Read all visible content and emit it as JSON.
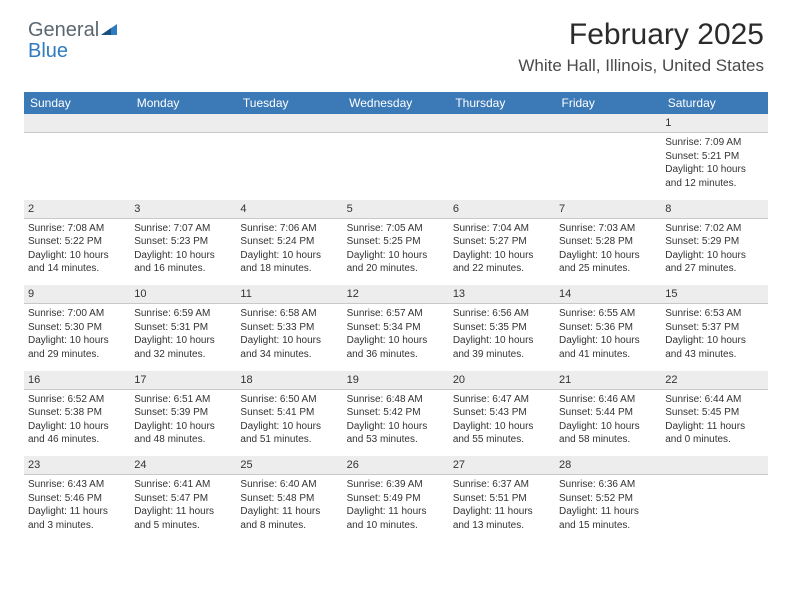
{
  "logo": {
    "word1": "General",
    "word2": "Blue"
  },
  "colors": {
    "header_bg": "#3b79b7",
    "header_text": "#ffffff",
    "daynum_bg": "#ededed",
    "body_text": "#333333",
    "logo_grey": "#5b6770",
    "logo_blue": "#2f7bbf",
    "page_bg": "#ffffff"
  },
  "title": "February 2025",
  "location": "White Hall, Illinois, United States",
  "day_headers": [
    "Sunday",
    "Monday",
    "Tuesday",
    "Wednesday",
    "Thursday",
    "Friday",
    "Saturday"
  ],
  "weeks": [
    [
      null,
      null,
      null,
      null,
      null,
      null,
      {
        "n": "1",
        "sunrise": "Sunrise: 7:09 AM",
        "sunset": "Sunset: 5:21 PM",
        "daylight": "Daylight: 10 hours and 12 minutes."
      }
    ],
    [
      {
        "n": "2",
        "sunrise": "Sunrise: 7:08 AM",
        "sunset": "Sunset: 5:22 PM",
        "daylight": "Daylight: 10 hours and 14 minutes."
      },
      {
        "n": "3",
        "sunrise": "Sunrise: 7:07 AM",
        "sunset": "Sunset: 5:23 PM",
        "daylight": "Daylight: 10 hours and 16 minutes."
      },
      {
        "n": "4",
        "sunrise": "Sunrise: 7:06 AM",
        "sunset": "Sunset: 5:24 PM",
        "daylight": "Daylight: 10 hours and 18 minutes."
      },
      {
        "n": "5",
        "sunrise": "Sunrise: 7:05 AM",
        "sunset": "Sunset: 5:25 PM",
        "daylight": "Daylight: 10 hours and 20 minutes."
      },
      {
        "n": "6",
        "sunrise": "Sunrise: 7:04 AM",
        "sunset": "Sunset: 5:27 PM",
        "daylight": "Daylight: 10 hours and 22 minutes."
      },
      {
        "n": "7",
        "sunrise": "Sunrise: 7:03 AM",
        "sunset": "Sunset: 5:28 PM",
        "daylight": "Daylight: 10 hours and 25 minutes."
      },
      {
        "n": "8",
        "sunrise": "Sunrise: 7:02 AM",
        "sunset": "Sunset: 5:29 PM",
        "daylight": "Daylight: 10 hours and 27 minutes."
      }
    ],
    [
      {
        "n": "9",
        "sunrise": "Sunrise: 7:00 AM",
        "sunset": "Sunset: 5:30 PM",
        "daylight": "Daylight: 10 hours and 29 minutes."
      },
      {
        "n": "10",
        "sunrise": "Sunrise: 6:59 AM",
        "sunset": "Sunset: 5:31 PM",
        "daylight": "Daylight: 10 hours and 32 minutes."
      },
      {
        "n": "11",
        "sunrise": "Sunrise: 6:58 AM",
        "sunset": "Sunset: 5:33 PM",
        "daylight": "Daylight: 10 hours and 34 minutes."
      },
      {
        "n": "12",
        "sunrise": "Sunrise: 6:57 AM",
        "sunset": "Sunset: 5:34 PM",
        "daylight": "Daylight: 10 hours and 36 minutes."
      },
      {
        "n": "13",
        "sunrise": "Sunrise: 6:56 AM",
        "sunset": "Sunset: 5:35 PM",
        "daylight": "Daylight: 10 hours and 39 minutes."
      },
      {
        "n": "14",
        "sunrise": "Sunrise: 6:55 AM",
        "sunset": "Sunset: 5:36 PM",
        "daylight": "Daylight: 10 hours and 41 minutes."
      },
      {
        "n": "15",
        "sunrise": "Sunrise: 6:53 AM",
        "sunset": "Sunset: 5:37 PM",
        "daylight": "Daylight: 10 hours and 43 minutes."
      }
    ],
    [
      {
        "n": "16",
        "sunrise": "Sunrise: 6:52 AM",
        "sunset": "Sunset: 5:38 PM",
        "daylight": "Daylight: 10 hours and 46 minutes."
      },
      {
        "n": "17",
        "sunrise": "Sunrise: 6:51 AM",
        "sunset": "Sunset: 5:39 PM",
        "daylight": "Daylight: 10 hours and 48 minutes."
      },
      {
        "n": "18",
        "sunrise": "Sunrise: 6:50 AM",
        "sunset": "Sunset: 5:41 PM",
        "daylight": "Daylight: 10 hours and 51 minutes."
      },
      {
        "n": "19",
        "sunrise": "Sunrise: 6:48 AM",
        "sunset": "Sunset: 5:42 PM",
        "daylight": "Daylight: 10 hours and 53 minutes."
      },
      {
        "n": "20",
        "sunrise": "Sunrise: 6:47 AM",
        "sunset": "Sunset: 5:43 PM",
        "daylight": "Daylight: 10 hours and 55 minutes."
      },
      {
        "n": "21",
        "sunrise": "Sunrise: 6:46 AM",
        "sunset": "Sunset: 5:44 PM",
        "daylight": "Daylight: 10 hours and 58 minutes."
      },
      {
        "n": "22",
        "sunrise": "Sunrise: 6:44 AM",
        "sunset": "Sunset: 5:45 PM",
        "daylight": "Daylight: 11 hours and 0 minutes."
      }
    ],
    [
      {
        "n": "23",
        "sunrise": "Sunrise: 6:43 AM",
        "sunset": "Sunset: 5:46 PM",
        "daylight": "Daylight: 11 hours and 3 minutes."
      },
      {
        "n": "24",
        "sunrise": "Sunrise: 6:41 AM",
        "sunset": "Sunset: 5:47 PM",
        "daylight": "Daylight: 11 hours and 5 minutes."
      },
      {
        "n": "25",
        "sunrise": "Sunrise: 6:40 AM",
        "sunset": "Sunset: 5:48 PM",
        "daylight": "Daylight: 11 hours and 8 minutes."
      },
      {
        "n": "26",
        "sunrise": "Sunrise: 6:39 AM",
        "sunset": "Sunset: 5:49 PM",
        "daylight": "Daylight: 11 hours and 10 minutes."
      },
      {
        "n": "27",
        "sunrise": "Sunrise: 6:37 AM",
        "sunset": "Sunset: 5:51 PM",
        "daylight": "Daylight: 11 hours and 13 minutes."
      },
      {
        "n": "28",
        "sunrise": "Sunrise: 6:36 AM",
        "sunset": "Sunset: 5:52 PM",
        "daylight": "Daylight: 11 hours and 15 minutes."
      },
      null
    ]
  ]
}
